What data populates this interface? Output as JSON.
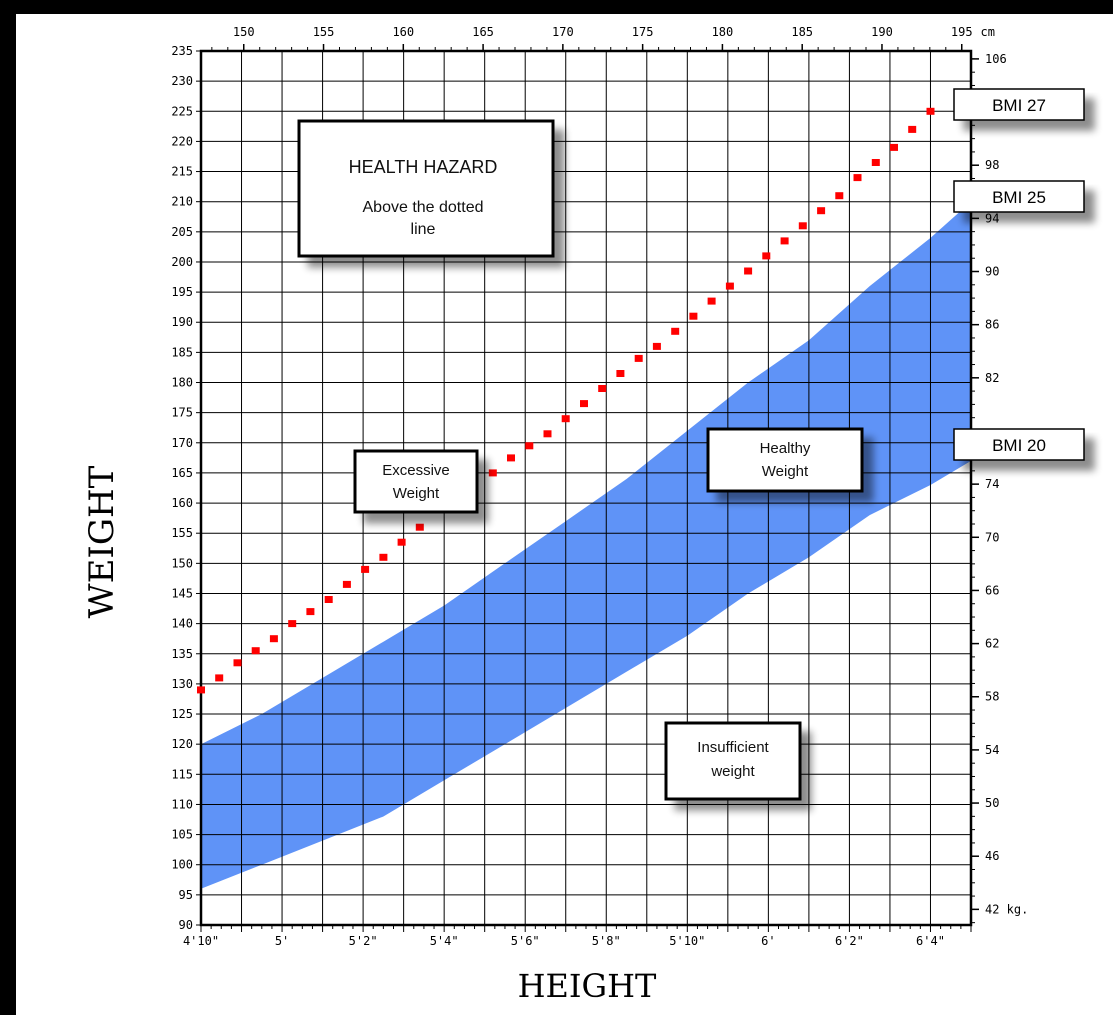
{
  "chart_data": {
    "type": "area",
    "x_bottom_ticks": [
      "4'10\"",
      "5'",
      "5'2\"",
      "5'4\"",
      "5'6\"",
      "5'8\"",
      "5'10\"",
      "6'",
      "6'2\"",
      "6'4\""
    ],
    "x_top_ticks": [
      "150",
      "155",
      "160",
      "165",
      "170",
      "175",
      "180",
      "185",
      "190",
      "195"
    ],
    "x_top_unit": "cm",
    "xlabel": "HEIGHT",
    "ylabel": "WEIGHT",
    "ylim_lb": [
      90,
      235
    ],
    "y_left_ticks": [
      90,
      95,
      100,
      105,
      110,
      115,
      120,
      125,
      130,
      135,
      140,
      145,
      150,
      155,
      160,
      165,
      170,
      175,
      180,
      185,
      190,
      195,
      200,
      205,
      210,
      215,
      220,
      225,
      230,
      235
    ],
    "y_right_ticks": [
      "42 kg.",
      "46",
      "50",
      "54",
      "58",
      "62",
      "66",
      "70",
      "74",
      "",
      "82",
      "86",
      "90",
      "94",
      "98",
      "",
      "106"
    ],
    "xlim_inches": [
      58,
      77
    ],
    "healthy_band": {
      "name": "Healthy Weight",
      "lower_bmi20": [
        [
          58,
          96
        ],
        [
          59.5,
          100
        ],
        [
          61,
          104
        ],
        [
          62.5,
          108
        ],
        [
          64,
          114
        ],
        [
          65.5,
          120
        ],
        [
          67,
          126
        ],
        [
          68.5,
          132
        ],
        [
          70,
          138
        ],
        [
          71.5,
          145
        ],
        [
          73,
          151
        ],
        [
          74.5,
          158
        ],
        [
          76,
          163
        ],
        [
          77,
          167
        ]
      ],
      "upper_bmi25": [
        [
          58,
          120
        ],
        [
          59.5,
          125
        ],
        [
          61,
          131
        ],
        [
          62.5,
          137
        ],
        [
          64,
          143
        ],
        [
          65.5,
          150
        ],
        [
          67,
          157
        ],
        [
          68.5,
          164
        ],
        [
          70,
          172
        ],
        [
          71.5,
          180
        ],
        [
          73,
          187
        ],
        [
          74.5,
          196
        ],
        [
          76,
          204
        ],
        [
          77,
          210
        ]
      ]
    },
    "bmi27_dotted": {
      "name": "BMI 27",
      "x": [
        58,
        58.45,
        58.9,
        59.35,
        59.8,
        60.25,
        60.7,
        61.15,
        61.6,
        62.05,
        62.5,
        62.95,
        63.4,
        65.2,
        65.65,
        66.1,
        66.55,
        67,
        67.45,
        67.9,
        68.35,
        68.8,
        69.25,
        69.7,
        70.15,
        70.6,
        71.05,
        71.5,
        71.95,
        72.4,
        72.85,
        73.3,
        73.75,
        74.2,
        74.65,
        75.1,
        75.55,
        76
      ],
      "y": [
        129,
        131,
        133.5,
        135.5,
        137.5,
        140,
        142,
        144,
        146.5,
        149,
        151,
        153.5,
        156,
        165,
        167.5,
        169.5,
        171.5,
        174,
        176.5,
        179,
        181.5,
        184,
        186,
        188.5,
        191,
        193.5,
        196,
        198.5,
        201,
        203.5,
        206,
        208.5,
        211,
        214,
        216.5,
        219,
        222,
        225
      ]
    },
    "annotations": {
      "hazard_title": "HEALTH HAZARD",
      "hazard_line1": "Above the dotted",
      "hazard_line2": "line",
      "excessive_line1": "Excessive",
      "excessive_line2": "Weight",
      "healthy_line1": "Healthy",
      "healthy_line2": "Weight",
      "insufficient_line1": "Insufficient",
      "insufficient_line2": "weight"
    },
    "bmi_labels": {
      "bmi27": "BMI 27",
      "bmi25": "BMI 25",
      "bmi20": "BMI 20"
    },
    "colors": {
      "band": "#5f93f7",
      "dots": "#ff0000",
      "grid": "#000000",
      "background": "#000000"
    }
  }
}
